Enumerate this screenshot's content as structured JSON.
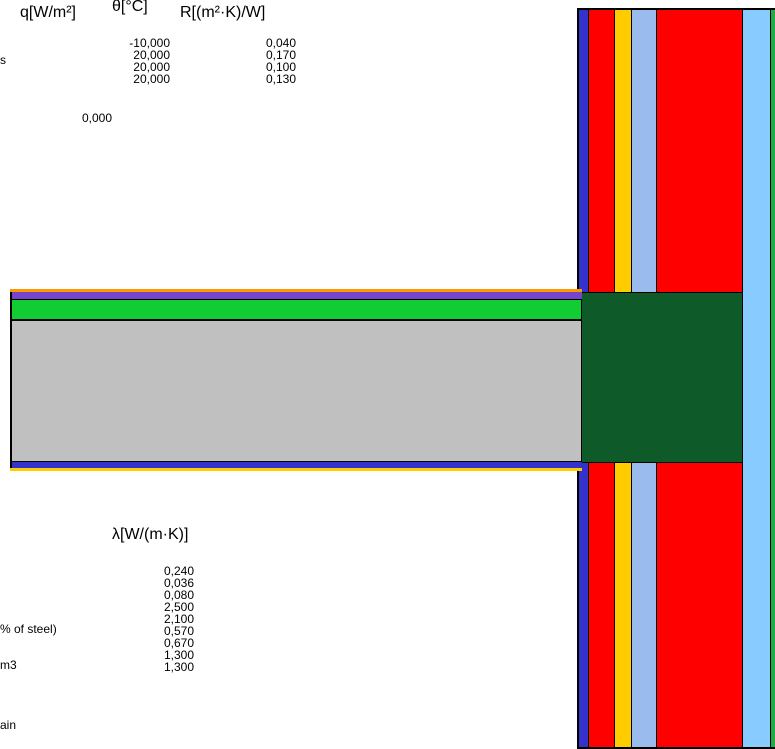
{
  "upper_table": {
    "headers": {
      "q": "q[W/m²]",
      "theta": "θ[°C]",
      "r": "R[(m²·K)/W]"
    },
    "row_labels": [
      "s"
    ],
    "theta_values": [
      "-10,000",
      "20,000",
      "20,000",
      "20,000"
    ],
    "r_values": [
      "0,040",
      "0,170",
      "0,100",
      "0,130"
    ],
    "q_value": "0,000"
  },
  "lower_table": {
    "header": "λ[W/(m·K)]",
    "row_labels": [
      "% of steel)",
      "m3",
      "ain"
    ],
    "lambda_values": [
      "0,240",
      "0,036",
      "0,080",
      "2,500",
      "2,100",
      "0,570",
      "0,670",
      "1,300",
      "1,300"
    ]
  },
  "colors": {
    "wall_outline": "#000000",
    "wall_blue": "#3333cc",
    "wall_red": "#ff0000",
    "wall_yellow": "#ffcc00",
    "wall_light_blue": "#99bbee",
    "wall_sky": "#88ccff",
    "wall_green_edge": "#22aa44",
    "floor_green": "#11cc33",
    "floor_gray": "#c0c0c0",
    "floor_purple": "#7744cc",
    "floor_orange": "#ff9900",
    "junction_dark_green": "#0e5a28"
  }
}
